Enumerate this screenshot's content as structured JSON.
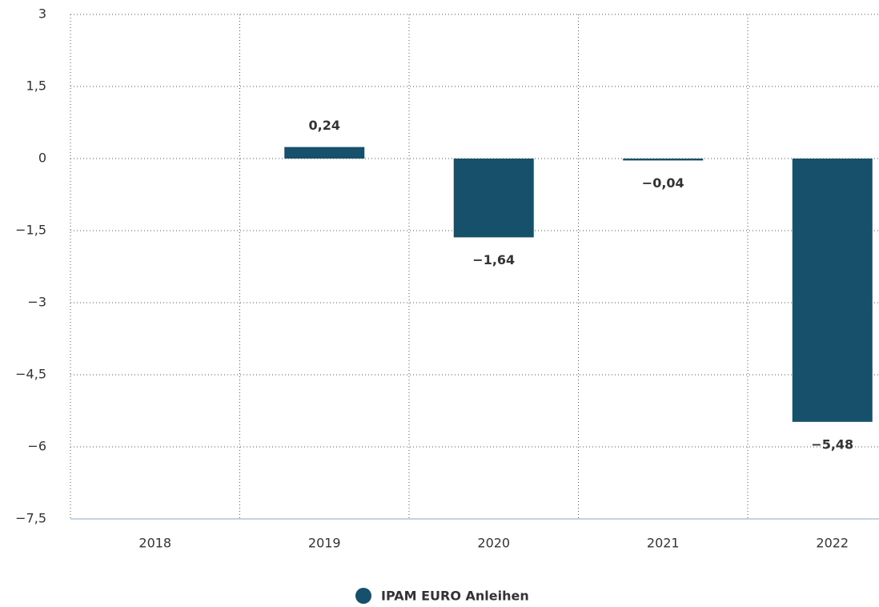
{
  "chart_data": {
    "type": "bar",
    "categories": [
      "2018",
      "2019",
      "2020",
      "2021",
      "2022"
    ],
    "series": [
      {
        "name": "IPAM EURO Anleihen",
        "color": "#17506b",
        "values": [
          null,
          0.24,
          -1.64,
          -0.04,
          -5.48
        ],
        "value_labels": [
          null,
          "0,24",
          "−1,64",
          "−0,04",
          "−5,48"
        ]
      }
    ],
    "ylim": [
      -7.5,
      3
    ],
    "yticks": [
      {
        "value": -7.5,
        "label": "−7,5"
      },
      {
        "value": -6,
        "label": "−6"
      },
      {
        "value": -4.5,
        "label": "−4,5"
      },
      {
        "value": -3,
        "label": "−3"
      },
      {
        "value": -1.5,
        "label": "−1,5"
      },
      0,
      {
        "value": 1.5,
        "label": "1,5"
      },
      3
    ],
    "grid": true
  }
}
